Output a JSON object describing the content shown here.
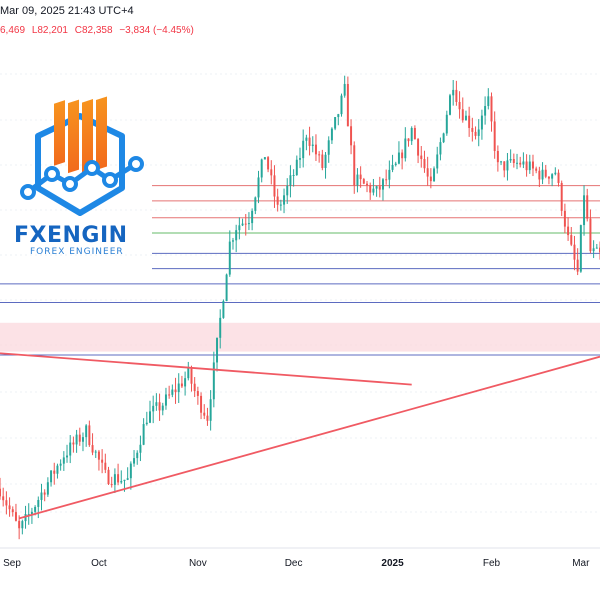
{
  "header": {
    "date_text": "Mar 09, 2025 21:43 UTC+4",
    "ohlc_high": "6,469",
    "ohlc_low": "L82,201",
    "ohlc_close": "C82,358",
    "ohlc_change": "−3,834 (−4.45%)"
  },
  "brand": {
    "name": "FXENGIN",
    "tagline": "FOREX ENGINEER"
  },
  "colors": {
    "up": "#26a69a",
    "down": "#ef5350",
    "resistance": "#e57373",
    "support_green": "#66bb6a",
    "support_blue": "#5c6bc0",
    "zone_fill": "#fbd5db",
    "trendline": "#f05a63",
    "logo_orange": "#f7931e",
    "logo_blue": "#1e88e5"
  },
  "chart_data": {
    "type": "candlestick",
    "x_ticks": [
      {
        "label": "Sep",
        "date": "2024-09-01"
      },
      {
        "label": "Oct",
        "date": "2024-10-01"
      },
      {
        "label": "Nov",
        "date": "2024-11-01"
      },
      {
        "label": "Dec",
        "date": "2024-12-01"
      },
      {
        "label": "2025",
        "date": "2025-01-01"
      },
      {
        "label": "Feb",
        "date": "2025-02-01"
      },
      {
        "label": "Mar",
        "date": "2025-03-01"
      }
    ],
    "x_range": [
      "2024-08-31",
      "2025-03-07"
    ],
    "y_range": [
      52000,
      112000
    ],
    "price_path": [
      [
        "2024-08-31",
        59000
      ],
      [
        "2024-09-06",
        54000
      ],
      [
        "2024-09-10",
        56500
      ],
      [
        "2024-09-20",
        63000
      ],
      [
        "2024-09-27",
        65800
      ],
      [
        "2024-10-03",
        60500
      ],
      [
        "2024-10-10",
        60000
      ],
      [
        "2024-10-16",
        67500
      ],
      [
        "2024-10-21",
        69000
      ],
      [
        "2024-10-29",
        72500
      ],
      [
        "2024-11-01",
        69500
      ],
      [
        "2024-11-04",
        67500
      ],
      [
        "2024-11-07",
        76000
      ],
      [
        "2024-11-11",
        88000
      ],
      [
        "2024-11-13",
        90000
      ],
      [
        "2024-11-17",
        91000
      ],
      [
        "2024-11-22",
        98500
      ],
      [
        "2024-11-26",
        92000
      ],
      [
        "2024-12-02",
        97000
      ],
      [
        "2024-12-05",
        101000
      ],
      [
        "2024-12-10",
        97000
      ],
      [
        "2024-12-17",
        106000
      ],
      [
        "2024-12-20",
        95500
      ],
      [
        "2024-12-27",
        94000
      ],
      [
        "2025-01-02",
        97000
      ],
      [
        "2025-01-07",
        101500
      ],
      [
        "2025-01-13",
        94500
      ],
      [
        "2025-01-20",
        107000
      ],
      [
        "2025-01-22",
        104000
      ],
      [
        "2025-01-27",
        101000
      ],
      [
        "2025-01-31",
        104500
      ],
      [
        "2025-02-03",
        97000
      ],
      [
        "2025-02-10",
        97500
      ],
      [
        "2025-02-17",
        96000
      ],
      [
        "2025-02-21",
        96500
      ],
      [
        "2025-02-25",
        88500
      ],
      [
        "2025-02-28",
        84500
      ],
      [
        "2025-03-02",
        94000
      ],
      [
        "2025-03-04",
        87000
      ],
      [
        "2025-03-07",
        86500
      ]
    ],
    "horizontal_levels": [
      {
        "price": 94800,
        "color": "resistance"
      },
      {
        "price": 93000,
        "color": "resistance"
      },
      {
        "price": 91000,
        "color": "resistance"
      },
      {
        "price": 89200,
        "color": "support_green"
      },
      {
        "price": 86800,
        "color": "support_blue"
      },
      {
        "price": 85000,
        "color": "support_blue"
      },
      {
        "price": 83200,
        "color": "support_blue"
      },
      {
        "price": 81000,
        "color": "support_blue"
      },
      {
        "price": 74800,
        "color": "support_blue"
      }
    ],
    "zone": {
      "price_low": 75200,
      "price_high": 78600
    },
    "trendlines": [
      {
        "from": [
          "2024-08-31",
          75000
        ],
        "to": [
          "2025-01-07",
          71300
        ]
      },
      {
        "from": [
          "2024-09-06",
          55500
        ],
        "to": [
          "2025-03-07",
          74600
        ]
      }
    ]
  }
}
